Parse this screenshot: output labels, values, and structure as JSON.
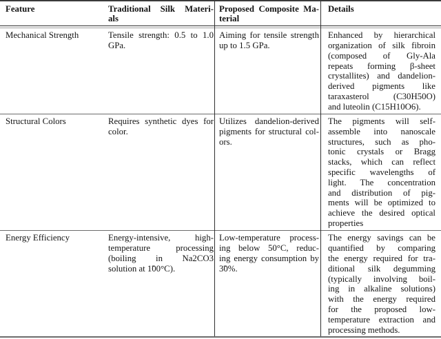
{
  "style_colors": {
    "text": "#141414",
    "rule_dark": "#2e2e2e",
    "rule_gray": "#6b6b6b",
    "background": "#ffffff"
  },
  "table": {
    "header": {
      "feature": "Feature",
      "traditional": [
        "Traditional Silk Materi-",
        "als"
      ],
      "proposed": [
        "Proposed Composite Ma-",
        "terial"
      ],
      "details": "Details"
    },
    "rows": [
      {
        "feature": "Mechanical Strength",
        "traditional": [
          "Tensile strength: 0.5 to 1.0",
          "GPa."
        ],
        "proposed": [
          "Aiming for tensile strength",
          "up to 1.5 GPa."
        ],
        "details": [
          "Enhanced by hierarchical",
          "organization of silk fibroin",
          "(composed of Gly-Ala",
          "repeats forming β-sheet",
          "crystallites) and dandelion-",
          "derived pigments like",
          "taraxasterol (C30H50O)",
          "and luteolin (C15H10O6)."
        ]
      },
      {
        "feature": "Structural Colors",
        "traditional": [
          "Requires synthetic dyes for",
          "color."
        ],
        "proposed": [
          "Utilizes dandelion-derived",
          "pigments for structural col-",
          "ors."
        ],
        "details": [
          "The pigments will self-",
          "assemble into nanoscale",
          "structures, such as pho-",
          "tonic crystals or Bragg",
          "stacks, which can reflect",
          "specific wavelengths of",
          "light.  The concentration",
          "and distribution of pig-",
          "ments will be optimized to",
          "achieve the desired optical",
          "properties"
        ]
      },
      {
        "feature": "Energy Efficiency",
        "traditional": [
          "Energy-intensive, high-",
          "temperature processing",
          "(boiling in Na2CO3",
          "solution at 1̃00°C)."
        ],
        "proposed": [
          "Low-temperature process-",
          "ing below 50°C, reduc-",
          "ing energy consumption by",
          "3̃0%."
        ],
        "details": [
          "The energy savings can be",
          "quantified by comparing",
          "the energy required for tra-",
          "ditional silk degumming",
          "(typically involving boil-",
          "ing in alkaline solutions)",
          "with the energy required",
          "for the proposed low-",
          "temperature extraction and",
          "processing methods."
        ]
      }
    ]
  }
}
